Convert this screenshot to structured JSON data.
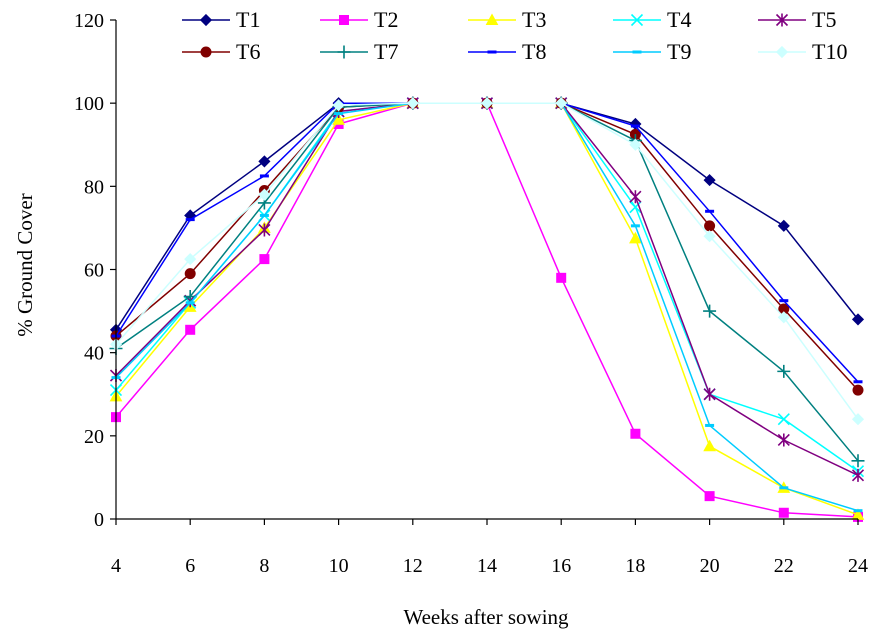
{
  "chart_data": {
    "type": "line",
    "xlabel": "Weeks after sowing",
    "ylabel": "% Ground Cover",
    "x": [
      4,
      6,
      8,
      10,
      12,
      14,
      16,
      18,
      20,
      22,
      24
    ],
    "xlim": [
      4,
      24
    ],
    "ylim": [
      0,
      120
    ],
    "yticks": [
      0,
      20,
      40,
      60,
      80,
      100,
      120
    ],
    "grid": false,
    "legend_position": "top",
    "series": [
      {
        "name": "T1",
        "color": "#000080",
        "marker": "diamond",
        "values": [
          45.5,
          73,
          86,
          100,
          100,
          100,
          100,
          95,
          81.5,
          70.5,
          48
        ]
      },
      {
        "name": "T2",
        "color": "#ff00ff",
        "marker": "square",
        "values": [
          24.5,
          45.5,
          62.5,
          95,
          100,
          100,
          58,
          20.5,
          5.5,
          1.5,
          0.5
        ]
      },
      {
        "name": "T3",
        "color": "#ffff00",
        "marker": "triangle",
        "values": [
          29.5,
          51,
          70,
          96,
          100,
          100,
          100,
          67.5,
          17.5,
          7.5,
          1
        ]
      },
      {
        "name": "T4",
        "color": "#00ffff",
        "marker": "x",
        "values": [
          31,
          52,
          73,
          98,
          100,
          100,
          100,
          75,
          30,
          24,
          11.5
        ]
      },
      {
        "name": "T5",
        "color": "#800080",
        "marker": "asterisk",
        "values": [
          34.5,
          52.5,
          69.5,
          98,
          100,
          100,
          100,
          77.5,
          30,
          19,
          10.5
        ]
      },
      {
        "name": "T6",
        "color": "#800000",
        "marker": "circle",
        "values": [
          44,
          59,
          79,
          99,
          100,
          100,
          100,
          92.5,
          70.5,
          50.5,
          31
        ]
      },
      {
        "name": "T7",
        "color": "#008080",
        "marker": "plus",
        "values": [
          41,
          53.5,
          76,
          99,
          100,
          100,
          100,
          91,
          50,
          35.5,
          14
        ]
      },
      {
        "name": "T8",
        "color": "#0000ff",
        "marker": "dash",
        "values": [
          44,
          72,
          82.5,
          100,
          100,
          100,
          100,
          94.5,
          74,
          52.5,
          33
        ]
      },
      {
        "name": "T9",
        "color": "#00ccff",
        "marker": "dash",
        "values": [
          34,
          52,
          73,
          97.5,
          100,
          100,
          100,
          70.5,
          22.5,
          7.5,
          2
        ]
      },
      {
        "name": "T10",
        "color": "#ccffff",
        "marker": "diamond",
        "values": [
          42,
          62.5,
          78,
          99.5,
          100,
          100,
          100,
          90,
          68,
          48.5,
          24
        ]
      }
    ]
  }
}
